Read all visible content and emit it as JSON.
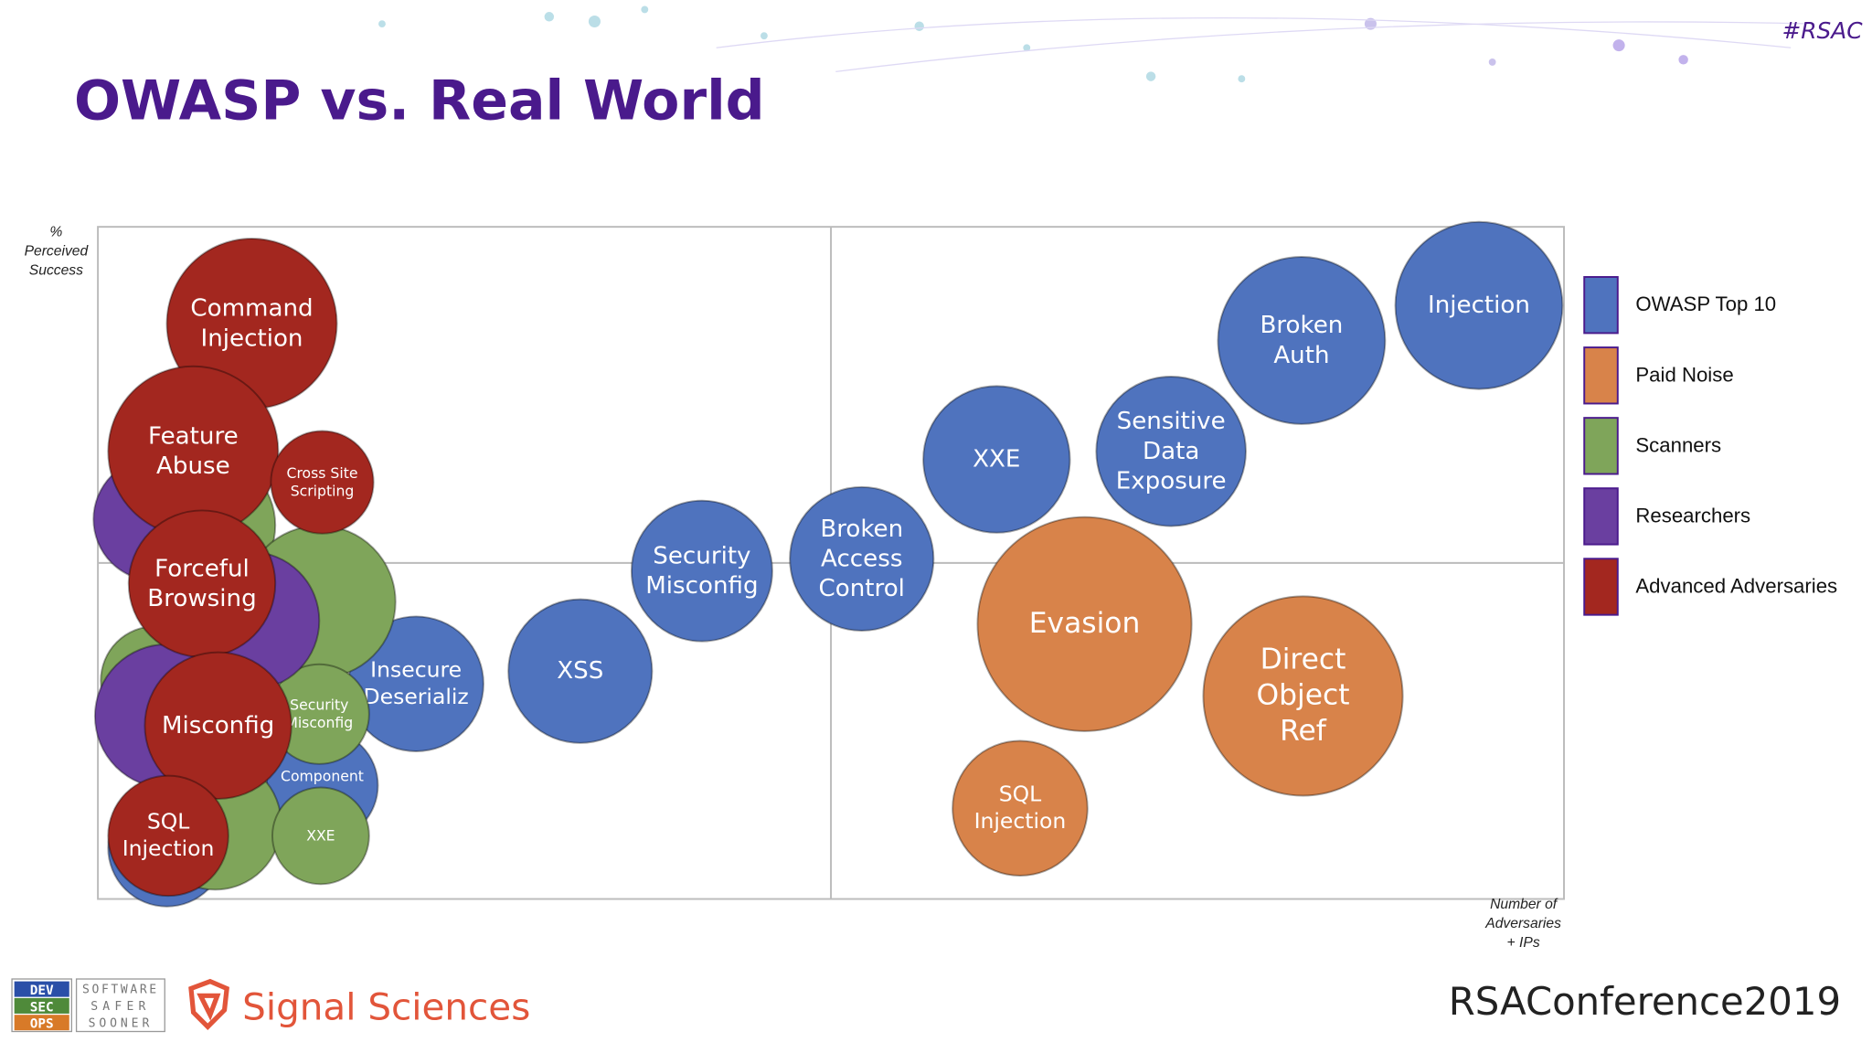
{
  "slide": {
    "hashtag": "#RSAC",
    "devsecops": [
      "DEV",
      "SEC",
      "OPS"
    ],
    "tagline": [
      "SOFTWARE",
      "SAFER",
      "SOONER"
    ],
    "sponsor": "Signal Sciences",
    "conference": "RSAConference2019"
  },
  "chart_data": {
    "type": "bubble",
    "title": "OWASP vs. Real World",
    "y_label": "%\nPerceived\nSuccess",
    "x_label": "Number of\nAdversaries\n+ IPs",
    "xlim": [
      0,
      100
    ],
    "ylim": [
      0,
      100
    ],
    "quadrants": true,
    "legend": "right",
    "series": [
      {
        "name": "OWASP Top 10",
        "color": "#4f73be",
        "x": [
          94.2,
          82.1,
          73.2,
          61.3,
          52.1,
          41.2,
          32.9,
          21.7,
          15.3,
          4.7
        ],
        "y": [
          88.3,
          83.1,
          66.6,
          65.4,
          50.6,
          48.8,
          33.9,
          32.0,
          16.9,
          7.6
        ],
        "size": [
          5.7,
          5.7,
          5.1,
          5.0,
          4.9,
          4.8,
          4.9,
          4.6,
          3.8,
          4.0
        ],
        "labels": [
          "Injection",
          "Broken\nAuth",
          "Sensitive\nData\nExposure",
          "XXE",
          "Broken\nAccess\nControl",
          "Security\nMisconfig",
          "XSS",
          "Insecure\nDeserializ",
          "Component\nw/",
          null
        ]
      },
      {
        "name": "Paid Noise",
        "color": "#d8834a",
        "x": [
          67.3,
          82.2,
          62.9
        ],
        "y": [
          40.9,
          30.2,
          13.5
        ],
        "size": [
          7.3,
          6.8,
          4.6
        ],
        "labels": [
          "Evasion",
          "Direct\nObject\nRef",
          "SQL\nInjection"
        ]
      },
      {
        "name": "Scanners",
        "color": "#7fa55a",
        "x": [
          7.2,
          15.1,
          3.9,
          8.0,
          15.1,
          15.2
        ],
        "y": [
          55.6,
          44.2,
          32.5,
          11.2,
          27.5,
          9.4
        ],
        "size": [
          4.9,
          5.2,
          3.7,
          4.5,
          3.4,
          3.3
        ],
        "labels": [
          null,
          null,
          null,
          null,
          "Security\nMisconfig",
          "XXE"
        ]
      },
      {
        "name": "Researchers",
        "color": "#6a3fa0",
        "x": [
          3.9,
          10.4,
          4.7
        ],
        "y": [
          56.5,
          41.4,
          27.2
        ],
        "size": [
          4.2,
          4.7,
          4.9
        ],
        "labels": [
          null,
          null,
          null
        ]
      },
      {
        "name": "Advanced Adversaries",
        "color": "#a3271f",
        "x": [
          10.5,
          6.5,
          15.3,
          7.1,
          8.2,
          4.8
        ],
        "y": [
          85.6,
          66.6,
          62.0,
          46.9,
          25.8,
          9.4
        ],
        "size": [
          5.8,
          5.8,
          3.5,
          5.0,
          5.0,
          4.1
        ],
        "labels": [
          "Command\nInjection",
          "Feature\nAbuse",
          "Cross Site\nScripting",
          "Forceful\nBrowsing",
          "Misconfig",
          "SQL\nInjection"
        ]
      }
    ]
  }
}
